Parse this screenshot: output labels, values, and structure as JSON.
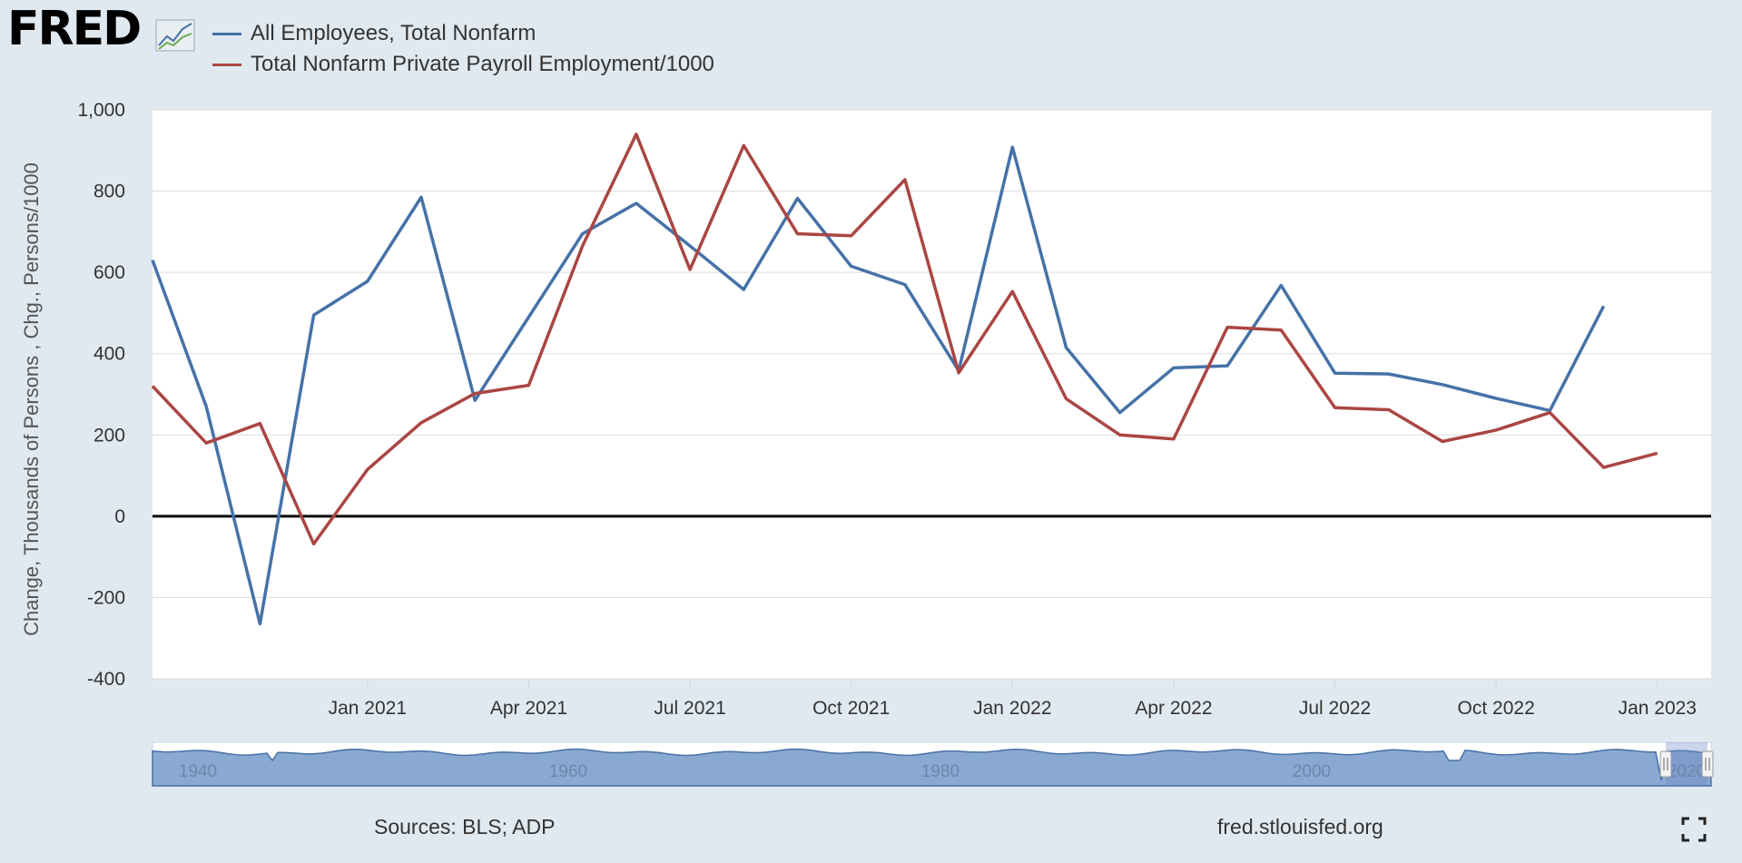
{
  "header": {
    "logo_text": "FRED",
    "logo_icon": "chart-line-icon"
  },
  "legend": [
    {
      "label": "All Employees, Total Nonfarm",
      "color": "#4572a7"
    },
    {
      "label": "Total Nonfarm Private Payroll Employment/1000",
      "color": "#aa4643"
    }
  ],
  "chart_data": {
    "type": "line",
    "title": "",
    "xlabel": "",
    "ylabel": "Change, Thousands of Persons , Chg., Persons/1000",
    "ylim": [
      -400,
      1000
    ],
    "yticks": [
      -400,
      -200,
      0,
      200,
      400,
      600,
      800,
      1000
    ],
    "ytick_labels": [
      "-400",
      "-200",
      "0",
      "200",
      "400",
      "600",
      "800",
      "1,000"
    ],
    "x": [
      "2020-09",
      "2020-10",
      "2020-11",
      "2020-12",
      "2021-01",
      "2021-02",
      "2021-03",
      "2021-04",
      "2021-05",
      "2021-06",
      "2021-07",
      "2021-08",
      "2021-09",
      "2021-10",
      "2021-11",
      "2021-12",
      "2022-01",
      "2022-02",
      "2022-03",
      "2022-04",
      "2022-05",
      "2022-06",
      "2022-07",
      "2022-08",
      "2022-09",
      "2022-10",
      "2022-11",
      "2022-12",
      "2023-01",
      "2023-02"
    ],
    "xlim": [
      "2020-09",
      "2023-02"
    ],
    "xticks": [
      "2021-01",
      "2021-04",
      "2021-07",
      "2021-10",
      "2022-01",
      "2022-04",
      "2022-07",
      "2022-10",
      "2023-01"
    ],
    "xtick_labels": [
      "Jan 2021",
      "Apr 2021",
      "Jul 2021",
      "Oct 2021",
      "Jan 2022",
      "Apr 2022",
      "Jul 2022",
      "Oct 2022",
      "Jan 2023"
    ],
    "series": [
      {
        "name": "All Employees, Total Nonfarm",
        "color": "#4572a7",
        "values": [
          630,
          270,
          -265,
          495,
          578,
          785,
          285,
          490,
          695,
          770,
          665,
          558,
          782,
          615,
          570,
          358,
          908,
          415,
          255,
          365,
          370,
          568,
          352,
          350,
          324,
          290,
          260,
          517,
          null,
          null
        ]
      },
      {
        "name": "Total Nonfarm Private Payroll Employment/1000",
        "color": "#aa4643",
        "values": [
          320,
          180,
          228,
          -68,
          115,
          230,
          302,
          322,
          665,
          940,
          607,
          912,
          695,
          690,
          828,
          353,
          553,
          289,
          200,
          190,
          465,
          458,
          267,
          262,
          184,
          212,
          255,
          120,
          155,
          null
        ]
      }
    ],
    "zero_line": true,
    "grid": true,
    "legend_position": "top-left",
    "navigator": {
      "labels": [
        "1940",
        "1960",
        "1980",
        "2000",
        "2020"
      ]
    }
  },
  "footer": {
    "sources": "Sources: BLS; ADP",
    "url": "fred.stlouisfed.org",
    "fullscreen_icon": "fullscreen-icon"
  }
}
